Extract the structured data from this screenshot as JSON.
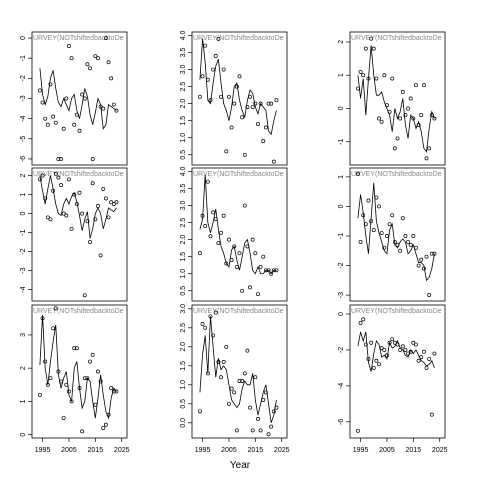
{
  "x_label": "Year",
  "chart_data": [
    {
      "type": "scatter",
      "annotation": "URVEY(NOTshiftedbacktoDe",
      "x": [
        1994,
        1995,
        1996,
        1997,
        1998,
        1999,
        2000,
        2001,
        2002,
        2003,
        2004,
        2005,
        2006,
        2007,
        2008,
        2009,
        2010,
        2011,
        2012,
        2013,
        2014,
        2015,
        2016,
        2017,
        2018,
        2019,
        2020,
        2021,
        2022,
        2023
      ],
      "values": [
        -2.6,
        -3.2,
        -4.0,
        -4.3,
        -2.3,
        -3.9,
        -4.2,
        -6.0,
        -6.0,
        -4.5,
        -3.0,
        -0.4,
        -1.0,
        -4.3,
        -3.8,
        -4.6,
        -2.8,
        -3.0,
        -1.3,
        -1.5,
        -6.0,
        -0.9,
        -1.0,
        -3.4,
        -3.5,
        0.0,
        -1.2,
        -2.0,
        -3.3,
        -3.6
      ],
      "fit": [
        -1.5,
        -2.8,
        -3.3,
        -2.9,
        -2.0,
        -1.6,
        -2.5,
        -3.2,
        -3.4,
        -3.0,
        -3.3,
        -3.6,
        -3.0,
        -2.8,
        -3.6,
        -4.0,
        -3.3,
        -2.5,
        -2.9,
        -3.8,
        -4.3,
        -3.7,
        -3.0,
        -3.3,
        -4.5,
        -4.3,
        -3.3,
        -3.4,
        -3.5,
        -3.6
      ],
      "xlim": [
        1991,
        2027
      ],
      "ylim": [
        -6.3,
        0.3
      ],
      "yticks": [
        0,
        -1,
        -2,
        -3,
        -4,
        -5,
        -6
      ]
    },
    {
      "type": "scatter",
      "annotation": "URVEY(NOTshiftedbacktoDe",
      "x": [
        1994,
        1995,
        1996,
        1997,
        1998,
        1999,
        2000,
        2001,
        2002,
        2003,
        2004,
        2005,
        2006,
        2007,
        2008,
        2009,
        2010,
        2011,
        2012,
        2013,
        2014,
        2015,
        2016,
        2017,
        2018,
        2019,
        2020,
        2021,
        2022,
        2023
      ],
      "values": [
        2.2,
        2.8,
        3.7,
        2.7,
        2.1,
        3.0,
        3.4,
        3.9,
        2.2,
        3.0,
        0.6,
        2.2,
        1.3,
        2.0,
        2.5,
        2.8,
        1.6,
        0.5,
        1.9,
        2.2,
        1.9,
        2.0,
        1.4,
        2.0,
        0.9,
        1.3,
        2.0,
        2.0,
        0.3,
        2.1
      ],
      "fit": [
        2.7,
        3.9,
        3.2,
        2.1,
        2.0,
        2.6,
        3.1,
        3.3,
        2.6,
        2.0,
        1.8,
        1.5,
        1.9,
        2.5,
        2.6,
        2.1,
        1.8,
        1.6,
        2.1,
        2.4,
        2.3,
        1.9,
        1.7,
        2.0,
        1.9,
        1.8,
        1.2,
        1.1,
        1.5,
        1.8
      ],
      "xlim": [
        1991,
        2027
      ],
      "ylim": [
        0.2,
        4.1
      ],
      "yticks": [
        0.5,
        {
          "value": 1,
          "label": "1.0"
        },
        1.5,
        {
          "value": 2,
          "label": "2.0"
        },
        2.5,
        {
          "value": 3,
          "label": "3.0"
        },
        3.5,
        {
          "value": 4,
          "label": "4.0"
        }
      ]
    },
    {
      "type": "scatter",
      "annotation": "URVEY(NOTshiftedbacktoDe",
      "x": [
        1994,
        1995,
        1996,
        1997,
        1998,
        1999,
        2000,
        2001,
        2002,
        2003,
        2004,
        2005,
        2006,
        2007,
        2008,
        2009,
        2010,
        2011,
        2012,
        2013,
        2014,
        2015,
        2016,
        2017,
        2018,
        2019,
        2020,
        2021,
        2022,
        2023
      ],
      "values": [
        0.6,
        1.1,
        1.0,
        1.8,
        0.9,
        2.1,
        1.8,
        0.9,
        -0.3,
        -0.4,
        1.0,
        0.1,
        -0.1,
        0.9,
        -1.2,
        -0.9,
        -0.3,
        0.5,
        -0.2,
        0.0,
        0.3,
        -0.3,
        0.7,
        -0.5,
        -0.2,
        0.7,
        -1.5,
        -1.2,
        -0.2,
        -0.3
      ],
      "fit": [
        1.0,
        0.3,
        0.9,
        -0.2,
        0.9,
        1.9,
        1.0,
        0.4,
        0.4,
        0.5,
        0.2,
        0.0,
        -0.2,
        -0.7,
        0.0,
        -0.3,
        -0.1,
        0.3,
        -0.5,
        -0.9,
        -0.2,
        -0.3,
        -0.6,
        -0.4,
        -0.7,
        -1.2,
        -1.3,
        -0.6,
        -0.1,
        -0.3
      ],
      "xlim": [
        1991,
        2027
      ],
      "ylim": [
        -1.7,
        2.3
      ],
      "yticks": [
        -1,
        0,
        1,
        2
      ]
    },
    {
      "type": "scatter",
      "annotation": "URVEY(NOTshiftedbacktoDe",
      "x": [
        1994,
        1995,
        1996,
        1997,
        1998,
        1999,
        2000,
        2001,
        2002,
        2003,
        2004,
        2005,
        2006,
        2007,
        2008,
        2009,
        2010,
        2011,
        2012,
        2013,
        2014,
        2015,
        2016,
        2017,
        2018,
        2019,
        2020,
        2021,
        2022,
        2023
      ],
      "values": [
        1.8,
        2.0,
        0.8,
        -0.2,
        -0.3,
        1.2,
        2.1,
        1.9,
        1.5,
        0.0,
        -0.1,
        1.8,
        -0.8,
        1.0,
        0.5,
        1.1,
        0.0,
        -4.3,
        -0.4,
        -1.5,
        1.6,
        -0.3,
        0.4,
        -2.2,
        1.3,
        0.8,
        -0.2,
        0.6,
        0.5,
        0.6
      ],
      "fit": [
        2.0,
        1.2,
        0.5,
        1.3,
        2.0,
        1.3,
        0.5,
        0.0,
        -0.1,
        0.5,
        0.8,
        0.5,
        0.9,
        1.1,
        0.6,
        -0.1,
        -0.9,
        -0.3,
        0.1,
        -1.3,
        -0.8,
        0.0,
        0.3,
        0.0,
        -0.8,
        -0.3,
        0.3,
        0.2,
        0.1,
        0.3
      ],
      "xlim": [
        1991,
        2027
      ],
      "ylim": [
        -4.6,
        2.4
      ],
      "yticks": [
        -4,
        -3,
        -2,
        -1,
        0,
        1,
        2
      ]
    },
    {
      "type": "scatter",
      "annotation": "URVEY(NOTshiftedbacktoDe",
      "x": [
        1994,
        1995,
        1996,
        1997,
        1998,
        1999,
        2000,
        2001,
        2002,
        2003,
        2004,
        2005,
        2006,
        2007,
        2008,
        2009,
        2010,
        2011,
        2012,
        2013,
        2014,
        2015,
        2016,
        2017,
        2018,
        2019,
        2020,
        2021,
        2022,
        2023
      ],
      "values": [
        1.6,
        2.7,
        2.4,
        3.7,
        2.1,
        2.8,
        2.6,
        1.9,
        2.2,
        2.7,
        1.3,
        2.0,
        1.4,
        1.8,
        1.2,
        1.6,
        0.5,
        3.0,
        1.8,
        0.6,
        2.0,
        1.6,
        0.4,
        1.2,
        1.5,
        1.1,
        1.1,
        1.0,
        1.1,
        1.1
      ],
      "fit": [
        2.3,
        2.6,
        3.9,
        2.5,
        2.2,
        2.5,
        2.9,
        2.3,
        1.8,
        1.6,
        1.3,
        1.2,
        1.7,
        1.8,
        1.4,
        1.1,
        1.5,
        1.9,
        2.0,
        1.6,
        1.1,
        1.0,
        1.2,
        1.0,
        1.0,
        1.1,
        1.1,
        1.0,
        1.1,
        1.1
      ],
      "xlim": [
        1991,
        2027
      ],
      "ylim": [
        0.2,
        4.1
      ],
      "yticks": [
        0.5,
        {
          "value": 1,
          "label": "1.0"
        },
        1.5,
        {
          "value": 2,
          "label": "2.0"
        },
        2.5,
        {
          "value": 3,
          "label": "3.0"
        },
        3.5,
        {
          "value": 4,
          "label": "4.0"
        }
      ]
    },
    {
      "type": "scatter",
      "annotation": "URVEY(NOTshiftedbacktoDe",
      "x": [
        1994,
        1995,
        1996,
        1997,
        1998,
        1999,
        2000,
        2001,
        2002,
        2003,
        2004,
        2005,
        2006,
        2007,
        2008,
        2009,
        2010,
        2011,
        2012,
        2013,
        2014,
        2015,
        2016,
        2017,
        2018,
        2019,
        2020,
        2021,
        2022,
        2023
      ],
      "values": [
        1.1,
        -1.2,
        -0.3,
        -0.6,
        0.2,
        -0.5,
        -0.8,
        0.3,
        0.0,
        -0.9,
        -1.4,
        -1.0,
        -0.6,
        -0.3,
        -1.2,
        -1.3,
        -1.5,
        -0.4,
        -1.0,
        -1.2,
        -1.3,
        -1.0,
        -1.4,
        -2.0,
        -1.8,
        -2.1,
        -1.7,
        -3.0,
        -1.6,
        -1.6
      ],
      "fit": [
        -0.4,
        0.4,
        -0.2,
        -1.0,
        -1.6,
        -0.4,
        0.8,
        -0.5,
        -0.9,
        -1.2,
        -1.5,
        -1.6,
        -0.8,
        -0.6,
        -1.3,
        -1.4,
        -1.2,
        -1.1,
        -1.2,
        -1.6,
        -1.5,
        -1.3,
        -1.6,
        -1.9,
        -1.9,
        -2.0,
        -2.5,
        -2.4,
        -2.1,
        -1.6
      ],
      "xlim": [
        1991,
        2027
      ],
      "ylim": [
        -3.2,
        1.3
      ],
      "yticks": [
        -3,
        -2,
        -1,
        0,
        1
      ]
    },
    {
      "type": "scatter",
      "annotation": "URVEY(NOTshiftedbacktoDe",
      "x": [
        1994,
        1995,
        1996,
        1997,
        1998,
        1999,
        2000,
        2001,
        2002,
        2003,
        2004,
        2005,
        2006,
        2007,
        2008,
        2009,
        2010,
        2011,
        2012,
        2013,
        2014,
        2015,
        2016,
        2017,
        2018,
        2019,
        2020,
        2021,
        2022,
        2023
      ],
      "values": [
        1.2,
        3.5,
        2.2,
        1.5,
        1.7,
        3.2,
        3.8,
        1.9,
        1.6,
        0.5,
        1.5,
        1.3,
        1.0,
        2.6,
        2.6,
        1.4,
        0.1,
        1.7,
        1.7,
        2.2,
        2.4,
        0.9,
        1.9,
        1.6,
        0.2,
        0.3,
        0.6,
        1.4,
        1.3,
        1.3
      ],
      "fit": [
        2.1,
        3.6,
        2.0,
        1.5,
        2.2,
        2.8,
        3.3,
        1.8,
        1.4,
        1.7,
        1.9,
        1.2,
        1.0,
        2.0,
        2.2,
        1.4,
        0.8,
        1.0,
        1.7,
        1.6,
        1.0,
        0.5,
        1.1,
        1.8,
        1.2,
        0.7,
        0.5,
        1.1,
        1.4,
        1.3
      ],
      "xlim": [
        1991,
        2027
      ],
      "ylim": [
        -0.1,
        3.9
      ],
      "yticks": [
        0,
        1,
        2,
        3
      ],
      "xticks": [
        1995,
        2005,
        2015,
        2025
      ]
    },
    {
      "type": "scatter",
      "annotation": "URVEY(NOTshiftedbacktoDe",
      "x": [
        1994,
        1995,
        1996,
        1997,
        1998,
        1999,
        2000,
        2001,
        2002,
        2003,
        2004,
        2005,
        2006,
        2007,
        2008,
        2009,
        2010,
        2011,
        2012,
        2013,
        2014,
        2015,
        2016,
        2017,
        2018,
        2019,
        2020,
        2021,
        2022,
        2023
      ],
      "values": [
        0.3,
        2.6,
        2.5,
        1.3,
        2.8,
        2.3,
        2.9,
        1.6,
        1.2,
        1.6,
        2.0,
        0.5,
        0.9,
        0.8,
        -0.2,
        1.1,
        1.1,
        1.3,
        1.9,
        0.4,
        -0.2,
        1.2,
        0.1,
        -0.2,
        0.6,
        0.8,
        -0.3,
        -0.1,
        0.3,
        0.4
      ],
      "fit": [
        0.8,
        1.8,
        2.3,
        1.3,
        2.8,
        2.0,
        1.2,
        1.7,
        1.4,
        1.5,
        1.4,
        1.0,
        0.6,
        0.5,
        0.4,
        0.5,
        0.9,
        1.1,
        1.0,
        1.0,
        1.3,
        0.6,
        0.2,
        0.5,
        0.8,
        1.0,
        0.5,
        0.0,
        0.2,
        0.6
      ],
      "xlim": [
        1991,
        2027
      ],
      "ylim": [
        -0.4,
        3.1
      ],
      "yticks": [
        {
          "value": 0,
          "label": "0.0"
        },
        0.5,
        {
          "value": 1,
          "label": "1.0"
        },
        1.5,
        {
          "value": 2,
          "label": "2.0"
        },
        2.5,
        {
          "value": 3,
          "label": "3.0"
        }
      ],
      "xticks": [
        1995,
        2005,
        2015,
        2025
      ]
    },
    {
      "type": "scatter",
      "annotation": "URVEY(NOTshiftedbacktoDe",
      "x": [
        1994,
        1995,
        1996,
        1997,
        1998,
        1999,
        2000,
        2001,
        2002,
        2003,
        2004,
        2005,
        2006,
        2007,
        2008,
        2009,
        2010,
        2011,
        2012,
        2013,
        2014,
        2015,
        2016,
        2017,
        2018,
        2019,
        2020,
        2021,
        2022,
        2023
      ],
      "values": [
        -6.5,
        -0.5,
        -0.3,
        -1.7,
        -2.5,
        -1.6,
        -3.0,
        -2.6,
        -2.8,
        -1.9,
        -2.0,
        -2.3,
        -1.6,
        -1.4,
        -1.6,
        -1.7,
        -2.0,
        -1.8,
        -2.0,
        -2.2,
        -2.1,
        -1.6,
        -1.7,
        -2.6,
        -2.4,
        -2.1,
        -3.0,
        -2.5,
        -5.6,
        -2.2
      ],
      "fit": [
        -1.8,
        -1.0,
        -1.5,
        -1.0,
        -2.7,
        -3.2,
        -2.2,
        -1.5,
        -1.7,
        -2.4,
        -2.3,
        -2.5,
        -1.6,
        -1.9,
        -1.8,
        -1.5,
        -1.9,
        -2.0,
        -2.3,
        -2.4,
        -2.0,
        -2.2,
        -2.0,
        -2.3,
        -2.6,
        -2.7,
        -2.9,
        -2.8,
        -2.6,
        -3.0
      ],
      "xlim": [
        1991,
        2027
      ],
      "ylim": [
        -6.9,
        0.5
      ],
      "yticks": [
        -6,
        -4,
        -2,
        0
      ],
      "xticks": [
        1995,
        2005,
        2015,
        2025
      ]
    }
  ]
}
